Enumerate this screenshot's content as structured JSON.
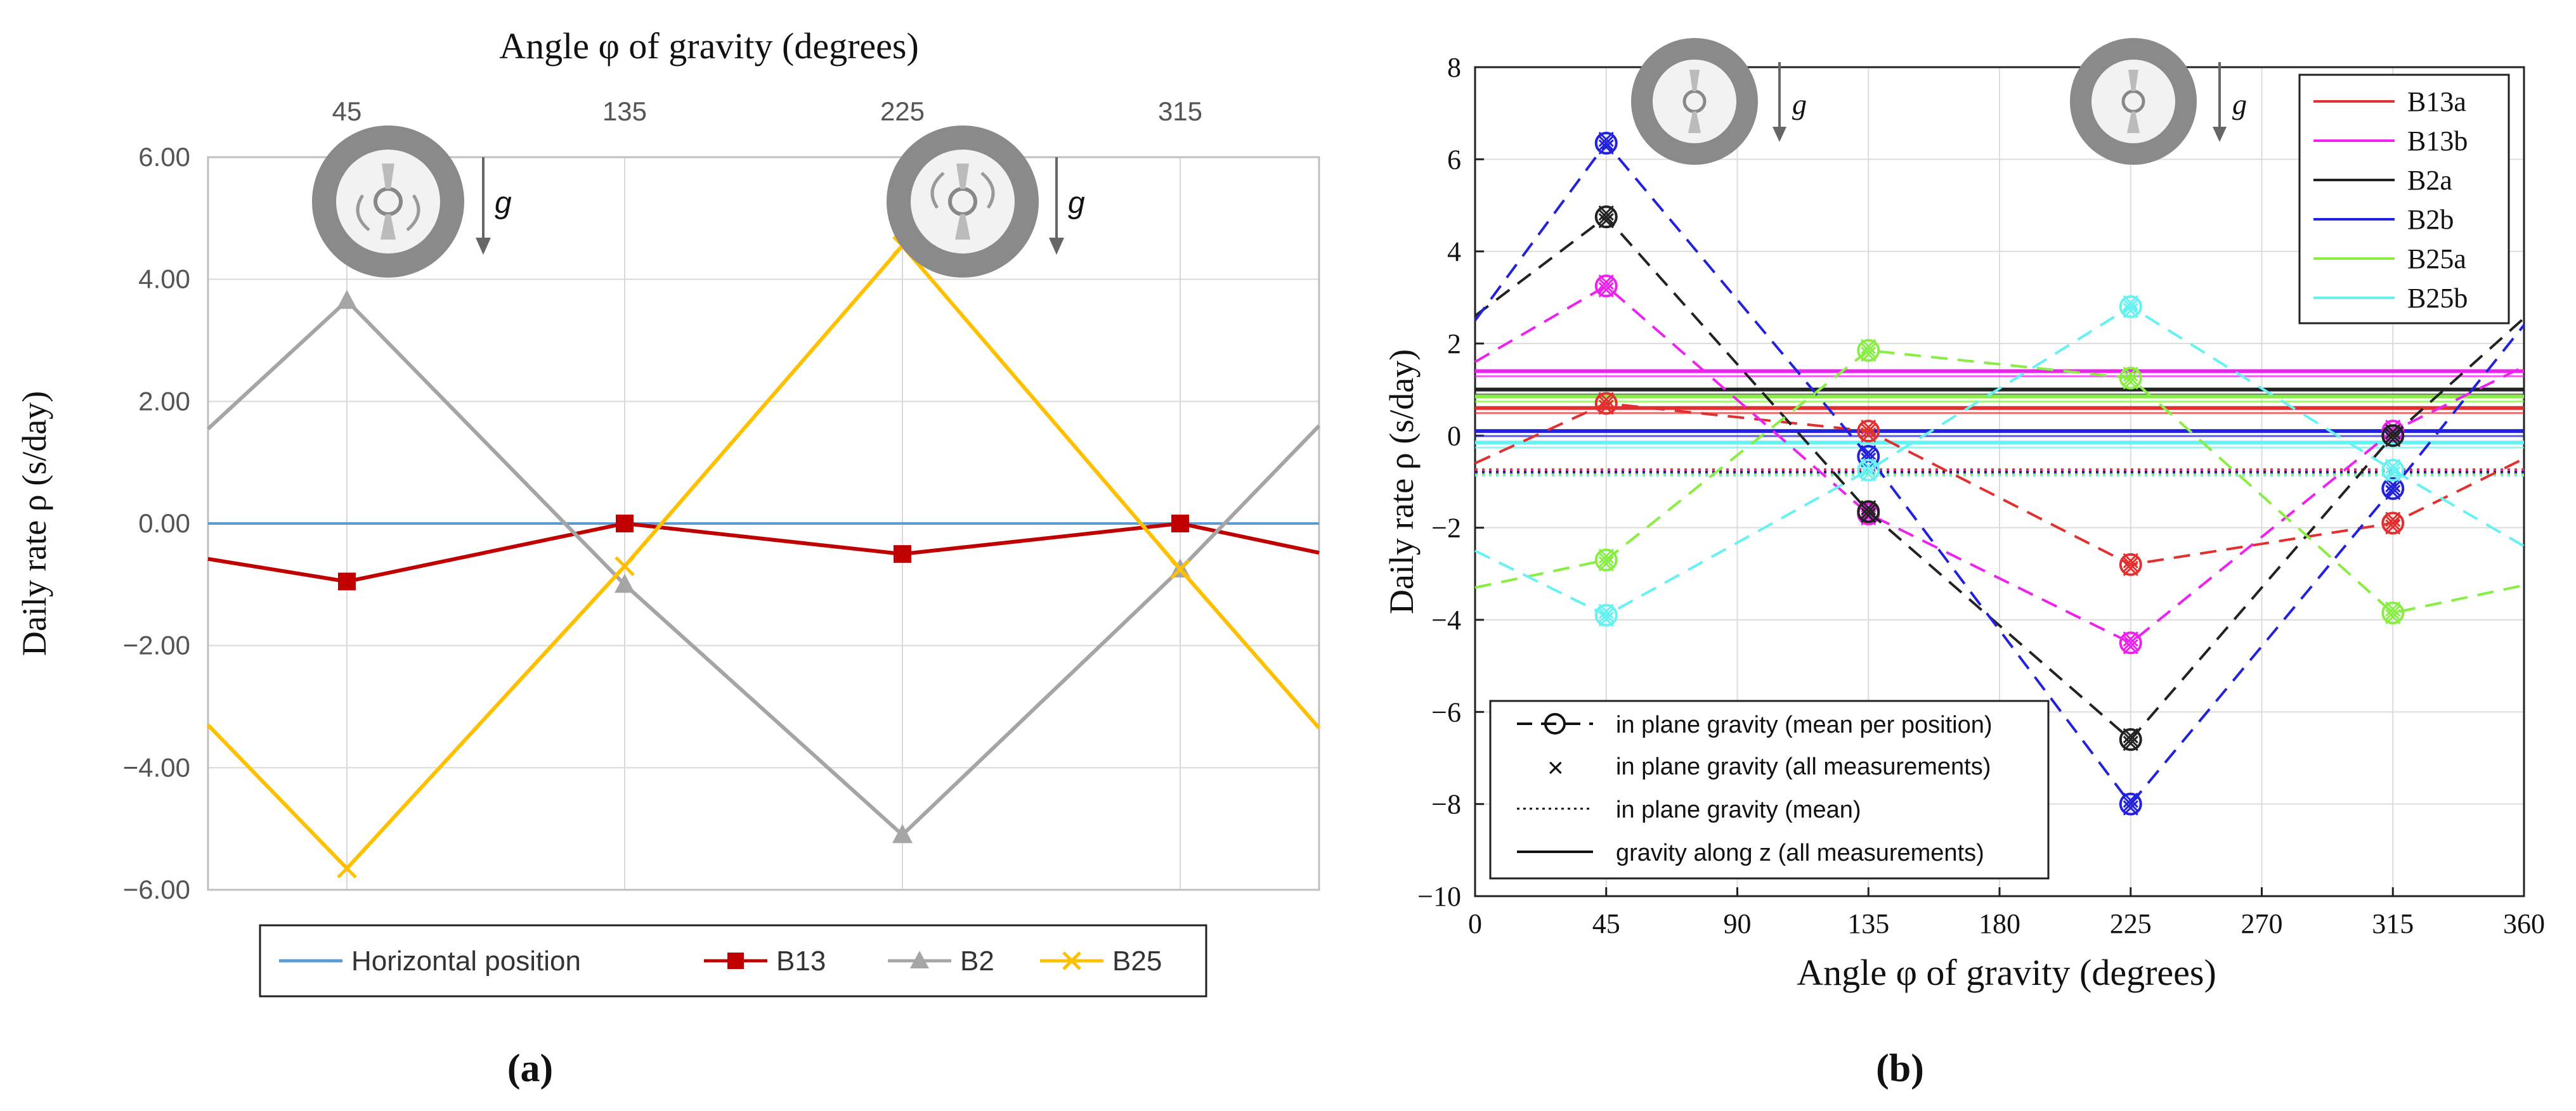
{
  "chart_data": [
    {
      "type": "line",
      "panel_label": "(a)",
      "title": "",
      "xlabel": "Angle φ of gravity (degrees)",
      "ylabel": "Daily rate ρ (s/day)",
      "x_axis_position": "top",
      "x_ticks": [
        "45",
        "135",
        "225",
        "315"
      ],
      "x": [
        0,
        45,
        135,
        225,
        315,
        360
      ],
      "xlim": [
        0,
        360
      ],
      "ylim": [
        -6,
        6
      ],
      "y_ticks": [
        "6.00",
        "4.00",
        "2.00",
        "0.00",
        "−2.00",
        "−4.00",
        "−6.00"
      ],
      "y_tick_values": [
        6,
        4,
        2,
        0,
        -2,
        -4,
        -6
      ],
      "grid": true,
      "legend_position": "bottom",
      "gravity_symbol": "g",
      "series": [
        {
          "name": "Horizontal position",
          "color": "#5b9bd5",
          "marker": "none",
          "values": [
            0,
            0,
            0,
            0,
            0,
            0
          ]
        },
        {
          "name": "B13",
          "color": "#c00000",
          "marker": "square",
          "values": [
            -0.58,
            -0.95,
            0.0,
            -0.5,
            0.0,
            -0.48
          ]
        },
        {
          "name": "B2",
          "color": "#a5a5a5",
          "marker": "triangle",
          "values": [
            1.55,
            3.65,
            -1.0,
            -5.1,
            -0.75,
            1.6
          ]
        },
        {
          "name": "B25",
          "color": "#ffc000",
          "marker": "x",
          "values": [
            -3.3,
            -5.65,
            -0.7,
            4.55,
            -0.75,
            -3.35
          ]
        }
      ]
    },
    {
      "type": "line",
      "panel_label": "(b)",
      "title": "",
      "xlabel": "Angle φ of gravity (degrees)",
      "ylabel": "Daily rate ρ (s/day)",
      "x": [
        0,
        45,
        135,
        225,
        315,
        360
      ],
      "xlim": [
        0,
        360
      ],
      "x_ticks": [
        "0",
        "45",
        "90",
        "135",
        "180",
        "225",
        "270",
        "315",
        "360"
      ],
      "x_tick_values": [
        0,
        45,
        90,
        135,
        180,
        225,
        270,
        315,
        360
      ],
      "ylim": [
        -10,
        8
      ],
      "y_ticks": [
        "8",
        "6",
        "4",
        "2",
        "0",
        "−2",
        "−4",
        "−6",
        "−8",
        "−10"
      ],
      "y_tick_values": [
        8,
        6,
        4,
        2,
        0,
        -2,
        -4,
        -6,
        -8,
        -10
      ],
      "grid": true,
      "legend_position": "top-right",
      "gravity_symbol": "g",
      "series": [
        {
          "name": "B13a",
          "color": "#e03030",
          "values": [
            -0.6,
            0.7,
            0.1,
            -2.8,
            -1.9,
            -0.5
          ],
          "gravity_z": 0.6,
          "mean": -0.8
        },
        {
          "name": "B13b",
          "color": "#ee22ee",
          "values": [
            1.6,
            3.25,
            -1.7,
            -4.5,
            0.1,
            1.5
          ],
          "gravity_z": 1.4,
          "mean": -0.8
        },
        {
          "name": "B2a",
          "color": "#222222",
          "values": [
            2.6,
            4.75,
            -1.65,
            -6.6,
            0.0,
            2.55
          ],
          "gravity_z": 1.0,
          "mean": -0.8
        },
        {
          "name": "B2b",
          "color": "#2222dd",
          "values": [
            2.5,
            6.35,
            -0.45,
            -8.0,
            -1.15,
            2.4
          ],
          "gravity_z": 0.1,
          "mean": -0.8
        },
        {
          "name": "B25a",
          "color": "#88ee44",
          "values": [
            -3.3,
            -2.7,
            1.85,
            1.25,
            -3.85,
            -3.25
          ],
          "gravity_z": 0.85,
          "mean": -0.8
        },
        {
          "name": "B25b",
          "color": "#66f2f2",
          "values": [
            -2.5,
            -3.9,
            -0.75,
            2.8,
            -0.75,
            -2.4
          ],
          "gravity_z": -0.15,
          "mean": -0.8
        }
      ],
      "style_legend": [
        {
          "label": "in plane gravity (mean per position)"
        },
        {
          "label": "in plane gravity (all measurements)"
        },
        {
          "label": "in plane gravity (mean)"
        },
        {
          "label": "gravity along z (all measurements)"
        }
      ]
    }
  ]
}
